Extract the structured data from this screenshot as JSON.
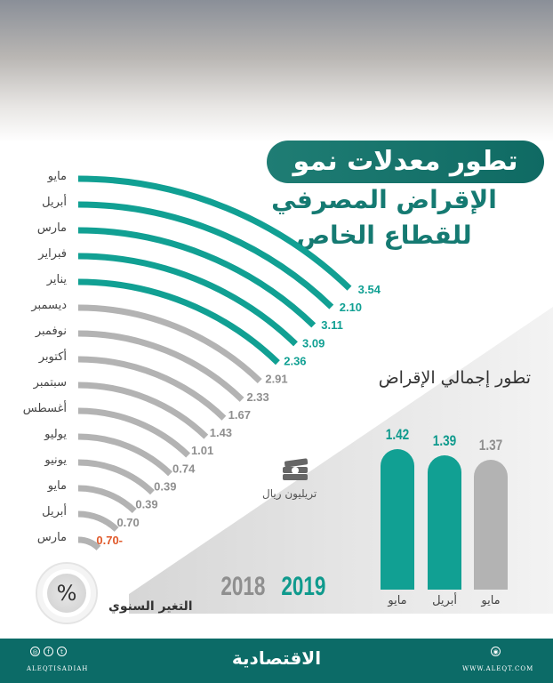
{
  "title": {
    "line1": "تطور معدلات نمو",
    "line2": "الإقراض المصرفي",
    "line3": "للقطاع الخاص"
  },
  "colors": {
    "teal": "#11a093",
    "gray": "#b3b3b3",
    "negative": "#e0592a",
    "footer": "#0c6b67"
  },
  "chart_data": [
    {
      "type": "radial-bar",
      "title": "التغير السنوي",
      "unit_symbol": "%",
      "categories": [
        "مايو",
        "أبريل",
        "مارس",
        "فبراير",
        "يناير",
        "ديسمبر",
        "نوفمبر",
        "أكتوبر",
        "سبتمبر",
        "أغسطس",
        "يوليو",
        "يونيو",
        "مايو",
        "أبريل",
        "مارس"
      ],
      "values": [
        3.54,
        2.1,
        3.11,
        3.09,
        2.36,
        2.91,
        2.33,
        1.67,
        1.43,
        1.01,
        0.74,
        0.39,
        0.39,
        0.7,
        -0.7
      ],
      "value_labels": [
        "3.54",
        "2.10",
        "3.11",
        "3.09",
        "2.36",
        "2.91",
        "2.33",
        "1.67",
        "1.43",
        "1.01",
        "0.74",
        "0.39",
        "0.39",
        "0.70",
        "0.70-"
      ],
      "series_year": [
        "2019",
        "2019",
        "2019",
        "2019",
        "2019",
        "2018",
        "2018",
        "2018",
        "2018",
        "2018",
        "2018",
        "2018",
        "2018",
        "2018",
        "2018"
      ],
      "legend": [
        "2018",
        "2019"
      ]
    },
    {
      "type": "bar",
      "title": "تطور إجمالي الإقراض",
      "unit": "تريليون ريال",
      "categories": [
        "مايو",
        "أبريل",
        "مايو"
      ],
      "values": [
        1.42,
        1.39,
        1.37
      ],
      "value_labels": [
        "1.42",
        "1.39",
        "1.37"
      ],
      "series_year": [
        "2019",
        "2019",
        "2018"
      ]
    }
  ],
  "footer": {
    "logo": "الاقتصادية",
    "social_handle": "ALEQTISADIAH",
    "website": "WWW.ALEQT.COM",
    "social_icons": [
      "instagram-icon",
      "facebook-icon",
      "twitter-icon"
    ]
  }
}
